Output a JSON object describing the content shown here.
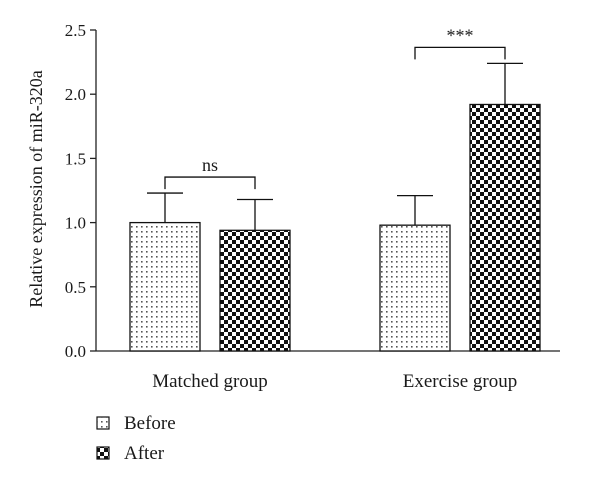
{
  "chart_data": {
    "type": "bar",
    "title": "",
    "xlabel": "",
    "ylabel": "Relative expression of miR-320a",
    "ylim": [
      0,
      2.5
    ],
    "yticks": [
      "0.0",
      "0.5",
      "1.0",
      "1.5",
      "2.0",
      "2.5"
    ],
    "grid": false,
    "categories": [
      "Matched group",
      "Exercise group"
    ],
    "series": [
      {
        "name": "Before",
        "values": [
          1.0,
          0.98
        ],
        "error": [
          0.23,
          0.23
        ],
        "pattern": "dots"
      },
      {
        "name": "After",
        "values": [
          0.94,
          1.92
        ],
        "error": [
          0.24,
          0.32
        ],
        "pattern": "checker"
      }
    ],
    "annotations": [
      {
        "category": "Matched group",
        "label": "ns"
      },
      {
        "category": "Exercise group",
        "label": "***"
      }
    ],
    "legend_position": "bottom-left"
  }
}
